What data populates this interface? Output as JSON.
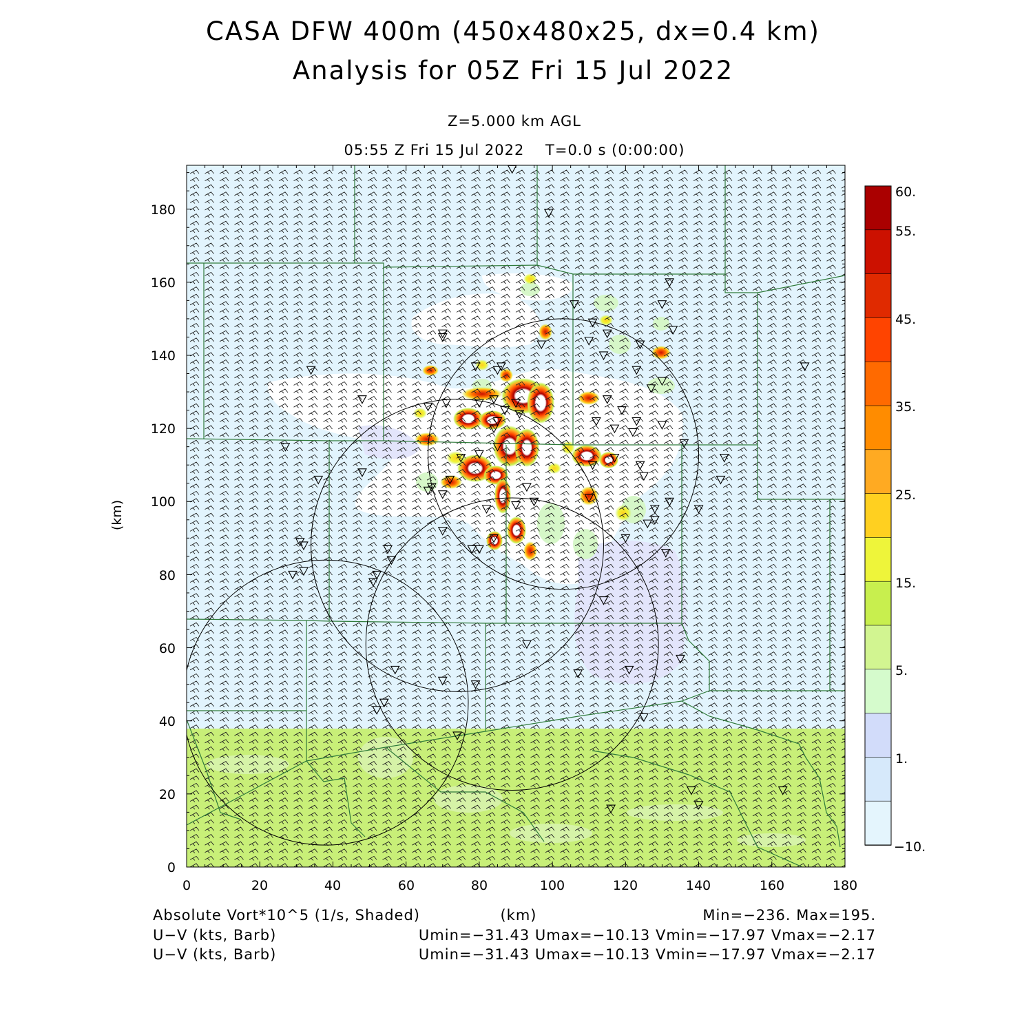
{
  "title": {
    "line1": "CASA DFW 400m (450x480x25, dx=0.4 km)",
    "line2": "Analysis for 05Z Fri 15 Jul 2022"
  },
  "subtitle": {
    "level": "Z=5.000 km AGL",
    "time": "05:55 Z Fri 15 Jul 2022    T=0.0 s (0:00:00)"
  },
  "axes": {
    "x_label": "(km)",
    "y_label": "(km)",
    "x_range": [
      0,
      180
    ],
    "y_range": [
      0,
      192
    ],
    "x_ticks": [
      "0",
      "20",
      "40",
      "60",
      "80",
      "100",
      "120",
      "140",
      "160",
      "180"
    ],
    "y_ticks": [
      "0",
      "20",
      "40",
      "60",
      "80",
      "100",
      "120",
      "140",
      "160",
      "180"
    ]
  },
  "colorbar": {
    "labels": [
      "60.",
      "55.",
      "45.",
      "35.",
      "25.",
      "15.",
      "5.",
      "1.",
      "−10."
    ],
    "colors": [
      "#aa0000",
      "#cc1100",
      "#e02a00",
      "#ff4400",
      "#ff6a00",
      "#ff8c00",
      "#ffaa22",
      "#ffd020",
      "#eef53a",
      "#c8ef4e",
      "#d2f591",
      "#d5fbcc",
      "#d2dcfa",
      "#d6e9fb",
      "#e4f5fd"
    ]
  },
  "footer": {
    "field": "Absolute Vort*10^5 (1/s, Shaded)",
    "xunit": "(km)",
    "minmax": "Min=−236. Max=195.",
    "barb1_label": "U−V (kts, Barb)",
    "barb1_stats": "Umin=−31.43 Umax=−10.13 Vmin=−17.97 Vmax=−2.17",
    "barb2_label": "U−V (kts, Barb)",
    "barb2_stats": "Umin=−31.43 Umax=−10.13 Vmin=−17.97 Vmax=−2.17"
  },
  "field_colors": {
    "background": "#e2f4fd",
    "south_band": "#c8ef78",
    "white_region": "#ffffff",
    "lavender": "#e3e5fb",
    "light_green": "#d6f7c8",
    "outline": "#2f7a3a"
  },
  "map_data": {
    "radar_circles_km": [
      {
        "cx": 103,
        "cy": 113,
        "r": 37
      },
      {
        "cx": 74,
        "cy": 88,
        "r": 40
      },
      {
        "cx": 89,
        "cy": 61,
        "r": 40
      },
      {
        "cx": 38,
        "cy": 45,
        "r": 39
      }
    ],
    "station_markers_km": [
      [
        89,
        191
      ],
      [
        99,
        179
      ],
      [
        132,
        160
      ],
      [
        130,
        154
      ],
      [
        133,
        147
      ],
      [
        106,
        154
      ],
      [
        111,
        149
      ],
      [
        115,
        146
      ],
      [
        110,
        144
      ],
      [
        124,
        143
      ],
      [
        70,
        146
      ],
      [
        70,
        145
      ],
      [
        97,
        143
      ],
      [
        86,
        137
      ],
      [
        85,
        136
      ],
      [
        79,
        137
      ],
      [
        114,
        140
      ],
      [
        123,
        136
      ],
      [
        130,
        133
      ],
      [
        127,
        131
      ],
      [
        169,
        137
      ],
      [
        34,
        136
      ],
      [
        48,
        128
      ],
      [
        66,
        126
      ],
      [
        71,
        127
      ],
      [
        80,
        127
      ],
      [
        84,
        128
      ],
      [
        87,
        125
      ],
      [
        90,
        127
      ],
      [
        85,
        122
      ],
      [
        84,
        120
      ],
      [
        91,
        124
      ],
      [
        119,
        125
      ],
      [
        123,
        122
      ],
      [
        130,
        121
      ],
      [
        112,
        122
      ],
      [
        122,
        119
      ],
      [
        115,
        128
      ],
      [
        117,
        120
      ],
      [
        136,
        116
      ],
      [
        27,
        115
      ],
      [
        75,
        112
      ],
      [
        80,
        113
      ],
      [
        85,
        115
      ],
      [
        117,
        112
      ],
      [
        111,
        110
      ],
      [
        124,
        110
      ],
      [
        125,
        107
      ],
      [
        147,
        112
      ],
      [
        146,
        106
      ],
      [
        36,
        106
      ],
      [
        48,
        108
      ],
      [
        67,
        104
      ],
      [
        66,
        103
      ],
      [
        70,
        102
      ],
      [
        72,
        106
      ],
      [
        93,
        104
      ],
      [
        95,
        100
      ],
      [
        90,
        99
      ],
      [
        82,
        98
      ],
      [
        110,
        101
      ],
      [
        140,
        98
      ],
      [
        132,
        100
      ],
      [
        128,
        98
      ],
      [
        128,
        95
      ],
      [
        126,
        94
      ],
      [
        80,
        87
      ],
      [
        78,
        87
      ],
      [
        84,
        90
      ],
      [
        120,
        90
      ],
      [
        131,
        86
      ],
      [
        70,
        92
      ],
      [
        55,
        87
      ],
      [
        56,
        84
      ],
      [
        31,
        89
      ],
      [
        32,
        88
      ],
      [
        29,
        80
      ],
      [
        32,
        81
      ],
      [
        52,
        80
      ],
      [
        51,
        78
      ],
      [
        114,
        73
      ],
      [
        93,
        61
      ],
      [
        135,
        57
      ],
      [
        121,
        54
      ],
      [
        107,
        53
      ],
      [
        57,
        54
      ],
      [
        70,
        51
      ],
      [
        79,
        50
      ],
      [
        54,
        45
      ],
      [
        52,
        43
      ],
      [
        125,
        41
      ],
      [
        74,
        36
      ],
      [
        138,
        21
      ],
      [
        163,
        21
      ],
      [
        116,
        16
      ],
      [
        140,
        17
      ]
    ]
  }
}
